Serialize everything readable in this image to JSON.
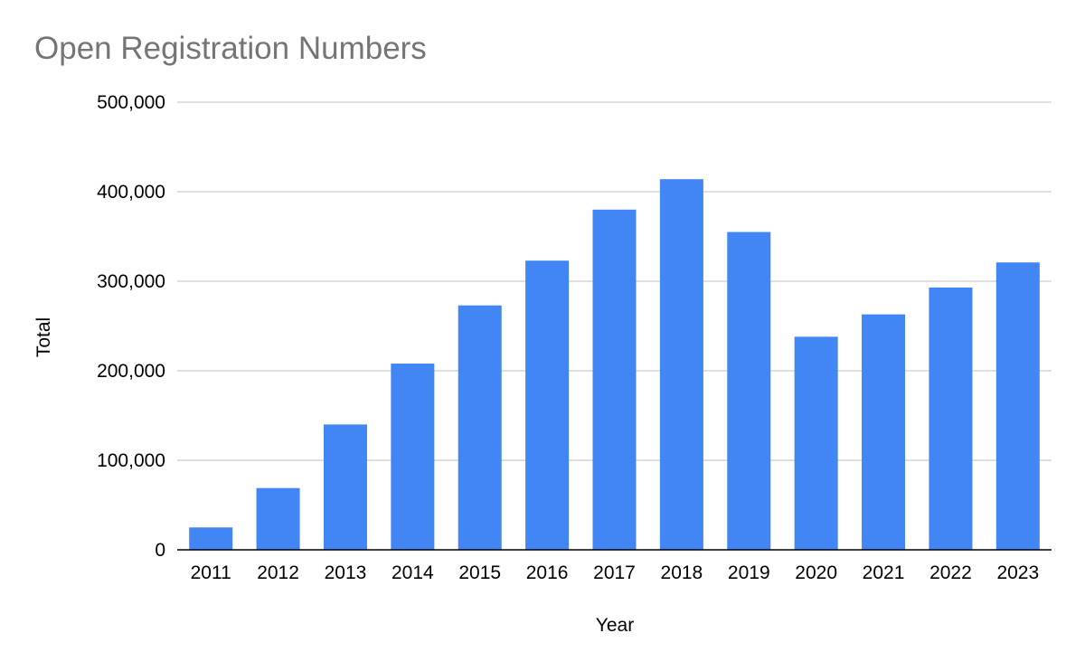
{
  "chart_data": {
    "type": "bar",
    "title": "Open Registration Numbers",
    "xlabel": "Year",
    "ylabel": "Total",
    "categories": [
      "2011",
      "2012",
      "2013",
      "2014",
      "2015",
      "2016",
      "2017",
      "2018",
      "2019",
      "2020",
      "2021",
      "2022",
      "2023"
    ],
    "values": [
      25000,
      69000,
      140000,
      208000,
      273000,
      323000,
      380000,
      414000,
      355000,
      238000,
      263000,
      293000,
      321000
    ],
    "ylim": [
      0,
      500000
    ],
    "yticks": [
      0,
      100000,
      200000,
      300000,
      400000,
      500000
    ],
    "ytick_labels": [
      "0",
      "100,000",
      "200,000",
      "300,000",
      "400,000",
      "500,000"
    ],
    "grid": true,
    "legend": "none",
    "bar_color": "#4285f4",
    "grid_color": "#cccccc",
    "axis_color": "#000000"
  }
}
